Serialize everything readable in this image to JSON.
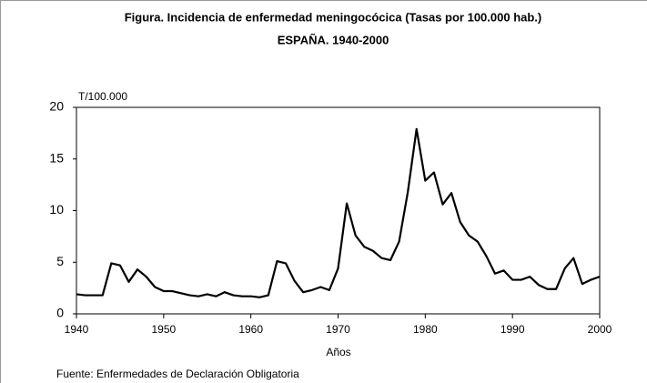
{
  "chart_data": {
    "type": "line",
    "title": "Figura. Incidencia de enfermedad meningocócica (Tasas por 100.000 hab.)",
    "subtitle": "ESPAÑA. 1940-2000",
    "y_label": "T/100.000",
    "x_label": "Años",
    "source": "Fuente: Enfermedades de Declaración Obligatoria",
    "x": [
      1940,
      1941,
      1942,
      1943,
      1944,
      1945,
      1946,
      1947,
      1948,
      1949,
      1950,
      1951,
      1952,
      1953,
      1954,
      1955,
      1956,
      1957,
      1958,
      1959,
      1960,
      1961,
      1962,
      1963,
      1964,
      1965,
      1966,
      1967,
      1968,
      1969,
      1970,
      1971,
      1972,
      1973,
      1974,
      1975,
      1976,
      1977,
      1978,
      1979,
      1980,
      1981,
      1982,
      1983,
      1984,
      1985,
      1986,
      1987,
      1988,
      1989,
      1990,
      1991,
      1992,
      1993,
      1994,
      1995,
      1996,
      1997,
      1998,
      1999,
      2000
    ],
    "series": [
      {
        "name": "T/100.000",
        "color": "#000000",
        "values": [
          1.9,
          1.8,
          1.8,
          1.8,
          4.9,
          4.7,
          3.1,
          4.3,
          3.6,
          2.6,
          2.2,
          2.2,
          2.0,
          1.8,
          1.7,
          1.9,
          1.7,
          2.1,
          1.8,
          1.7,
          1.7,
          1.6,
          1.8,
          5.1,
          4.9,
          3.2,
          2.1,
          2.3,
          2.6,
          2.3,
          4.4,
          10.7,
          7.6,
          6.5,
          6.1,
          5.4,
          5.2,
          7.0,
          11.8,
          17.9,
          12.9,
          13.7,
          10.6,
          11.7,
          8.9,
          7.6,
          7.0,
          5.6,
          3.9,
          4.2,
          3.3,
          3.3,
          3.6,
          2.8,
          2.4,
          2.4,
          4.4,
          5.4,
          2.9,
          3.3,
          3.6
        ]
      }
    ],
    "xlim": [
      1940,
      2000
    ],
    "xticks": [
      1940,
      1950,
      1960,
      1970,
      1980,
      1990,
      2000
    ],
    "ylim": [
      0,
      20
    ],
    "yticks": [
      0,
      5,
      10,
      15,
      20
    ],
    "grid": false
  }
}
